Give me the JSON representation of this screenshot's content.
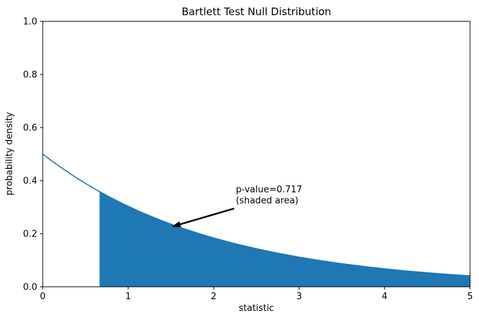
{
  "chart_data": {
    "type": "area",
    "title": "Bartlett Test Null Distribution",
    "xlabel": "statistic",
    "ylabel": "probability density",
    "xlim": [
      0,
      5
    ],
    "ylim": [
      0,
      1.0
    ],
    "x_ticks": [
      0,
      1,
      2,
      3,
      4,
      5
    ],
    "x_tick_labels": [
      "0",
      "1",
      "2",
      "3",
      "4",
      "5"
    ],
    "y_ticks": [
      0.0,
      0.2,
      0.4,
      0.6,
      0.8,
      1.0
    ],
    "y_tick_labels": [
      "0.0",
      "0.2",
      "0.4",
      "0.6",
      "0.8",
      "1.0"
    ],
    "grid": false,
    "line_color": "#1f77b4",
    "fill_color": "#1f77b4",
    "axis_color": "#000000",
    "curve": {
      "x": [
        0,
        0.125,
        0.25,
        0.375,
        0.5,
        0.625,
        0.75,
        0.875,
        1,
        1.125,
        1.25,
        1.375,
        1.5,
        1.625,
        1.75,
        1.875,
        2,
        2.25,
        2.5,
        2.75,
        3,
        3.25,
        3.5,
        3.75,
        4,
        4.25,
        4.5,
        4.75,
        5
      ],
      "y": [
        0.5,
        0.4697,
        0.4413,
        0.4145,
        0.3894,
        0.3658,
        0.3436,
        0.3228,
        0.3033,
        0.2849,
        0.2676,
        0.2514,
        0.2362,
        0.2219,
        0.2084,
        0.1958,
        0.1839,
        0.1623,
        0.1433,
        0.1264,
        0.1116,
        0.0985,
        0.0869,
        0.0767,
        0.0677,
        0.0597,
        0.0527,
        0.0465,
        0.041
      ]
    },
    "shade_from": 0.665,
    "shade_from_y": 0.3586,
    "shade_to": 5,
    "p_value": 0.717,
    "annotation": {
      "line1": "p-value=0.717",
      "line2": "(shaded area)",
      "text_pos": [
        2.26,
        0.385
      ],
      "arrow_tail": [
        2.24,
        0.295
      ],
      "arrow_tip": [
        1.508,
        0.226
      ]
    }
  }
}
